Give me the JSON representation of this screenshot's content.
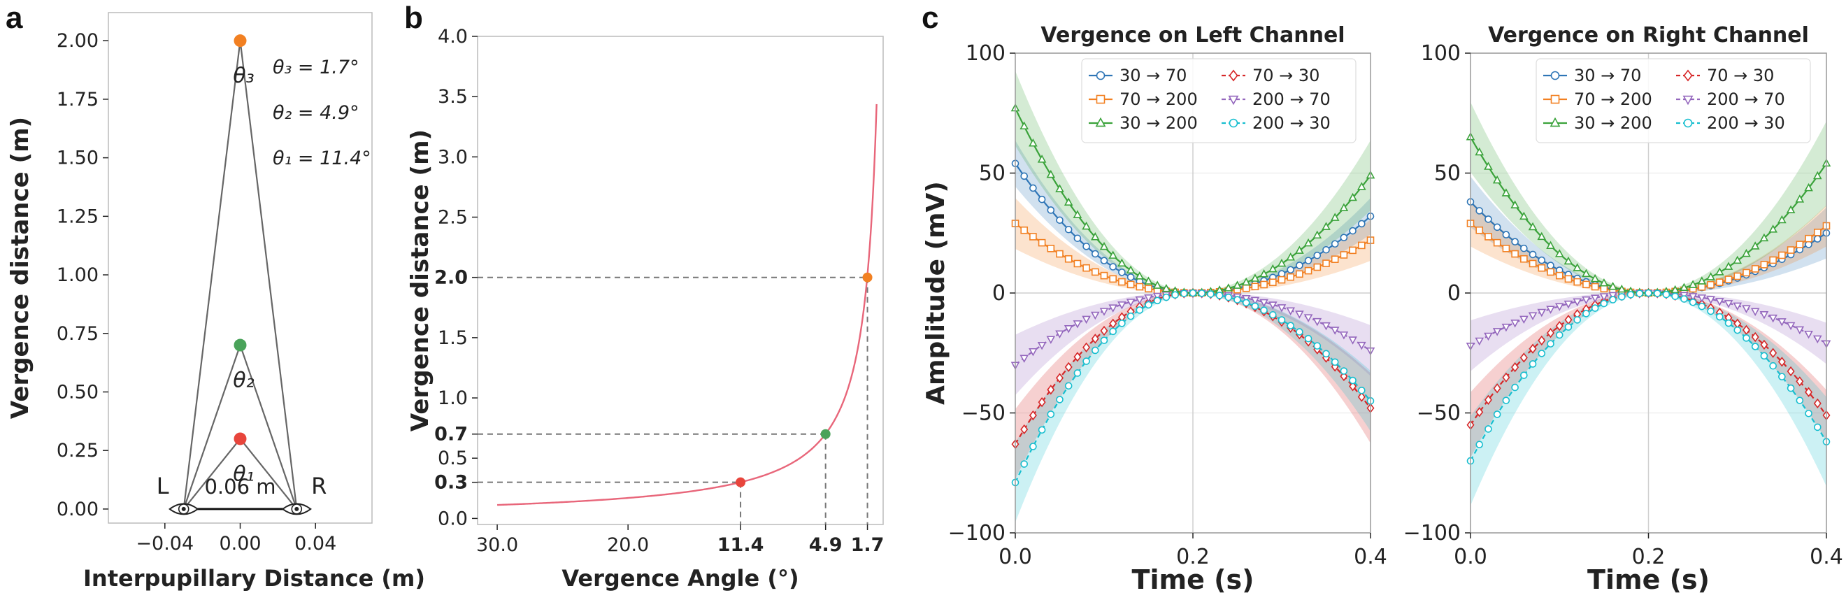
{
  "panels": {
    "a": "a",
    "b": "b",
    "c": "c"
  },
  "chart_data": [
    {
      "type": "diagram-scatter",
      "panel": "a",
      "xlabel": "Interpupillary Distance (m)",
      "ylabel": "Vergence distance (m)",
      "xlim": [
        -0.07,
        0.07
      ],
      "ylim": [
        -0.06,
        2.12
      ],
      "xticks": [
        -0.04,
        0.0,
        0.04
      ],
      "xtick_labels": [
        "−0.04",
        "0.00",
        "0.04"
      ],
      "yticks": [
        0.0,
        0.25,
        0.5,
        0.75,
        1.0,
        1.25,
        1.5,
        1.75,
        2.0
      ],
      "ytick_labels": [
        "0.00",
        "0.25",
        "0.50",
        "0.75",
        "1.00",
        "1.25",
        "1.50",
        "1.75",
        "2.00"
      ],
      "eyes": {
        "left_x": -0.03,
        "right_x": 0.03,
        "left_label": "L",
        "right_label": "R",
        "baseline_label": "0.06 m"
      },
      "points": [
        {
          "x": 0.0,
          "y": 0.3,
          "color": "#e8453c",
          "angle_label": "θ₁"
        },
        {
          "x": 0.0,
          "y": 0.7,
          "color": "#4aa35a",
          "angle_label": "θ₂"
        },
        {
          "x": 0.0,
          "y": 2.0,
          "color": "#f28022",
          "angle_label": "θ₃"
        }
      ],
      "annotations": [
        "θ₃ = 1.7°",
        "θ₂ = 4.9°",
        "θ₁ = 11.4°"
      ]
    },
    {
      "type": "line",
      "panel": "b",
      "xlabel": "Vergence Angle (°)",
      "ylabel": "Vergence distance (m)",
      "xlim": [
        31.5,
        0.5
      ],
      "ylim": [
        -0.05,
        4.0
      ],
      "xticks": [
        30.0,
        20.0,
        11.4,
        4.9,
        1.7
      ],
      "xtick_labels": [
        "30.0",
        "20.0",
        "11.4",
        "4.9",
        "1.7"
      ],
      "xtick_bold": [
        false,
        false,
        true,
        true,
        true
      ],
      "yticks": [
        0.0,
        0.3,
        0.5,
        0.7,
        1.0,
        1.5,
        2.0,
        2.5,
        3.0,
        3.5,
        4.0
      ],
      "ytick_labels": [
        "0.0",
        "0.3",
        "0.5",
        "0.7",
        "1.0",
        "1.5",
        "2.0",
        "2.5",
        "3.0",
        "3.5",
        "4.0"
      ],
      "ytick_bold": [
        false,
        true,
        false,
        true,
        false,
        false,
        true,
        false,
        false,
        false,
        false
      ],
      "curve": {
        "formula": "0.03 / tan(angle/2)",
        "x_from": 30.0,
        "x_to": 1.0,
        "color": "#e8667a"
      },
      "points": [
        {
          "x": 11.4,
          "y": 0.3,
          "color": "#e8453c"
        },
        {
          "x": 4.9,
          "y": 0.7,
          "color": "#4aa35a"
        },
        {
          "x": 1.7,
          "y": 2.0,
          "color": "#f28022"
        }
      ]
    },
    {
      "type": "line",
      "panel": "c-left",
      "title": "Vergence on Left Channel",
      "xlabel": "Time (s)",
      "ylabel": "Amplitude (mV)",
      "xlim": [
        0.0,
        0.4
      ],
      "ylim": [
        -100,
        100
      ],
      "xticks": [
        0.0,
        0.2,
        0.4
      ],
      "xtick_labels": [
        "0.0",
        "0.2",
        "0.4"
      ],
      "yticks": [
        -100,
        -50,
        0,
        50,
        100
      ],
      "ytick_labels": [
        "−100",
        "−50",
        "0",
        "50",
        "100"
      ],
      "series": [
        {
          "name": "30 → 70",
          "color": "#2e75b6",
          "marker": "o",
          "dashed": false,
          "start": 54,
          "end": 32,
          "band_start": 9,
          "band_end": 7
        },
        {
          "name": "70 → 30",
          "color": "#d62728",
          "marker": "d",
          "dashed": true,
          "start": -63,
          "end": -48,
          "band_start": 14,
          "band_end": 14
        },
        {
          "name": "70 → 200",
          "color": "#f28022",
          "marker": "s",
          "dashed": false,
          "start": 29,
          "end": 22,
          "band_start": 10,
          "band_end": 8
        },
        {
          "name": "200 → 70",
          "color": "#9467bd",
          "marker": "v",
          "dashed": true,
          "start": -30,
          "end": -24,
          "band_start": 12,
          "band_end": 10
        },
        {
          "name": "30 → 200",
          "color": "#3aa23a",
          "marker": "^",
          "dashed": false,
          "start": 77,
          "end": 49,
          "band_start": 15,
          "band_end": 14
        },
        {
          "name": "200 → 30",
          "color": "#17becf",
          "marker": "o",
          "dashed": true,
          "start": -79,
          "end": -45,
          "band_start": 16,
          "band_end": 12
        }
      ]
    },
    {
      "type": "line",
      "panel": "c-right",
      "title": "Vergence on Right Channel",
      "xlabel": "Time (s)",
      "xlim": [
        0.0,
        0.4
      ],
      "ylim": [
        -100,
        100
      ],
      "xticks": [
        0.0,
        0.2,
        0.4
      ],
      "xtick_labels": [
        "0.0",
        "0.2",
        "0.4"
      ],
      "yticks": [
        -100,
        -50,
        0,
        50,
        100
      ],
      "ytick_labels": [
        "−100",
        "−50",
        "0",
        "50",
        "100"
      ],
      "series": [
        {
          "name": "30 → 70",
          "color": "#2e75b6",
          "marker": "o",
          "dashed": false,
          "start": 38,
          "end": 25,
          "band_start": 10,
          "band_end": 10
        },
        {
          "name": "70 → 30",
          "color": "#d62728",
          "marker": "d",
          "dashed": true,
          "start": -55,
          "end": -51,
          "band_start": 13,
          "band_end": 10
        },
        {
          "name": "70 → 200",
          "color": "#f28022",
          "marker": "s",
          "dashed": false,
          "start": 29,
          "end": 28,
          "band_start": 9,
          "band_end": 8
        },
        {
          "name": "200 → 70",
          "color": "#9467bd",
          "marker": "v",
          "dashed": true,
          "start": -22,
          "end": -21,
          "band_start": 10,
          "band_end": 8
        },
        {
          "name": "30 → 200",
          "color": "#3aa23a",
          "marker": "^",
          "dashed": false,
          "start": 65,
          "end": 54,
          "band_start": 14,
          "band_end": 17
        },
        {
          "name": "200 → 30",
          "color": "#17becf",
          "marker": "o",
          "dashed": true,
          "start": -70,
          "end": -62,
          "band_start": 18,
          "band_end": 18
        }
      ]
    }
  ]
}
